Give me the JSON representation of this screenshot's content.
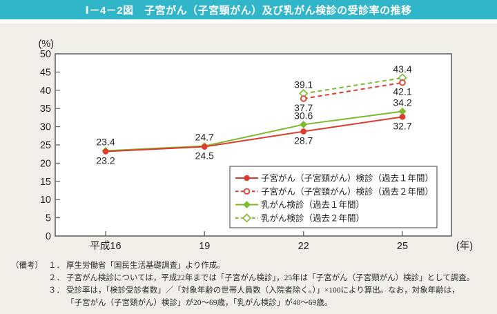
{
  "title": "Ⅰ－4－2図　子宮がん（子宮頸がん）及び乳がん検診の受診率の推移",
  "colors": {
    "title_bar": "#31b5c9",
    "title_text": "#ffffff",
    "page_background": "#f2efe9",
    "plot_background": "#ffffff",
    "axis": "#58595b",
    "text": "#231f1f",
    "cervical_red": "#e03a2e",
    "breast_green": "#7cb92c"
  },
  "chart_data": {
    "type": "line",
    "x_categories": [
      "平成16",
      "19",
      "22",
      "25"
    ],
    "x_axis_unit": "(年)",
    "y_axis_unit": "(%)",
    "ylim": [
      0,
      50
    ],
    "y_tick_step": 5,
    "grid": false,
    "legend_position": "inside-bottom-right",
    "series": [
      {
        "name": "子宮がん（子宮頸がん）検診（過去１年間）",
        "color": "#e03a2e",
        "line": "solid",
        "marker": "circle-filled",
        "values": [
          23.2,
          24.5,
          28.7,
          32.7
        ],
        "label_position": "below"
      },
      {
        "name": "子宮がん（子宮頸がん）検診（過去２年間）",
        "color": "#e03a2e",
        "line": "dashed",
        "marker": "circle-open",
        "values": [
          null,
          null,
          37.7,
          42.1
        ],
        "label_position": "below"
      },
      {
        "name": "乳がん検診（過去１年間）",
        "color": "#7cb92c",
        "line": "solid",
        "marker": "diamond-filled",
        "values": [
          23.4,
          24.7,
          30.6,
          34.2
        ],
        "label_position": "above"
      },
      {
        "name": "乳がん検診（過去２年間）",
        "color": "#7cb92c",
        "line": "dashed",
        "marker": "diamond-open",
        "values": [
          null,
          null,
          39.1,
          43.4
        ],
        "label_position": "above"
      }
    ]
  },
  "notes": {
    "label": "（備考）",
    "rows": [
      {
        "num": "１．",
        "text": "厚生労働省「国民生活基礎調査」より作成。"
      },
      {
        "num": "２．",
        "text": "子宮がん検診については，平成22年までは「子宮がん検診」，25年は「子宮がん（子宮頸がん）検診」として調査。"
      },
      {
        "num": "３．",
        "text": "受診率は，「検診受診者数」／「対象年齢の世帯人員数（入院者除く。）」×100により算出。なお，対象年齢は，"
      },
      {
        "num": "",
        "text": "「子宮がん（子宮頸がん）検診」が20～69歳，「乳がん検診」が40～69歳。"
      }
    ]
  }
}
